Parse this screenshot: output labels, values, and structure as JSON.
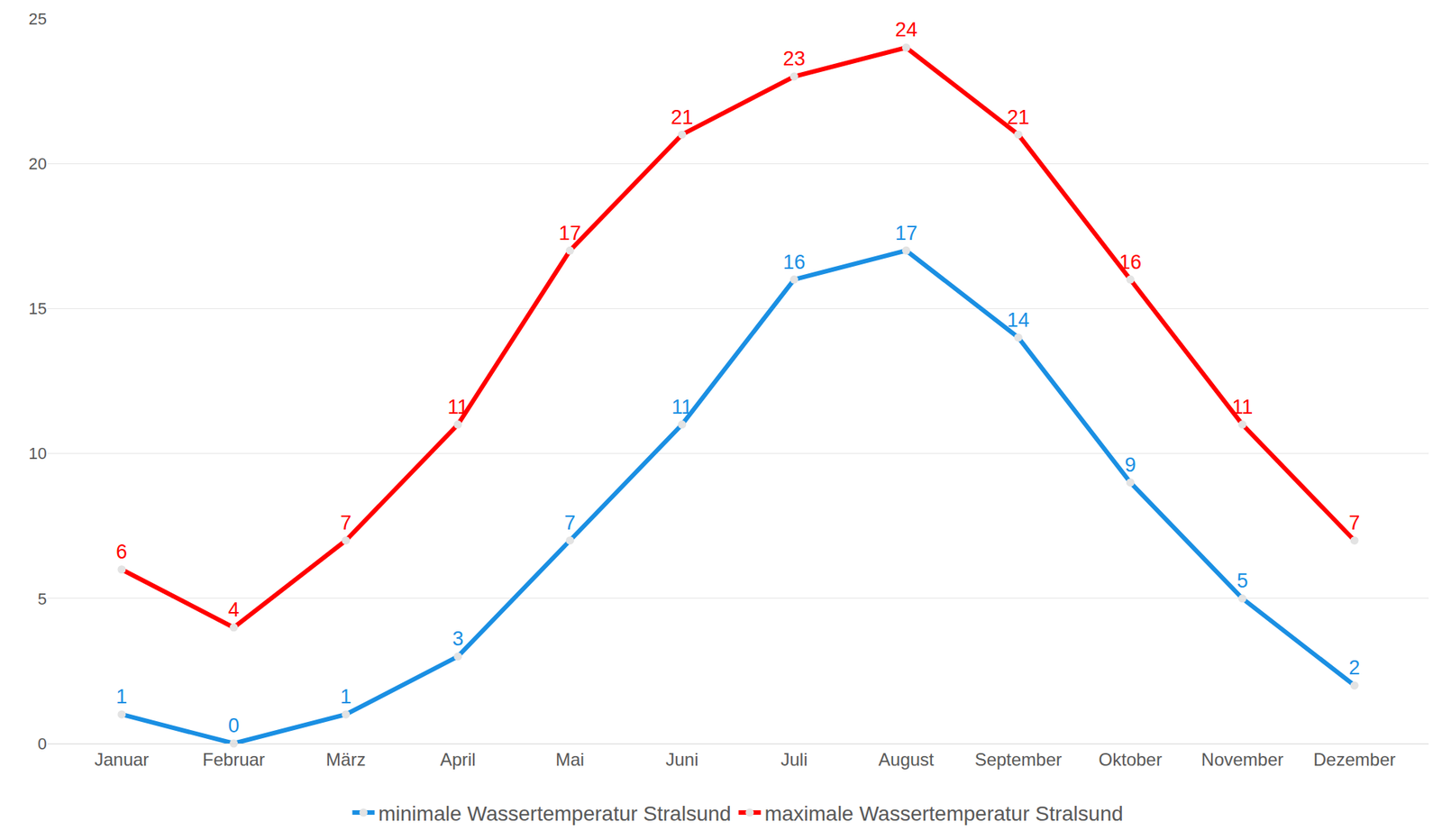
{
  "chart_data": {
    "type": "line",
    "categories": [
      "Januar",
      "Februar",
      "März",
      "April",
      "Mai",
      "Juni",
      "Juli",
      "August",
      "September",
      "Oktober",
      "November",
      "Dezember"
    ],
    "series": [
      {
        "name": "minimale Wassertemperatur Stralsund",
        "color": "#1a8fe3",
        "values": [
          1,
          0,
          1,
          3,
          7,
          11,
          16,
          17,
          14,
          9,
          5,
          2
        ]
      },
      {
        "name": "maximale Wassertemperatur Stralsund",
        "color": "#ff0000",
        "values": [
          6,
          4,
          7,
          11,
          17,
          21,
          23,
          24,
          21,
          16,
          11,
          7
        ]
      }
    ],
    "ylim": [
      0,
      25
    ],
    "yticks": [
      0,
      5,
      10,
      15,
      20,
      25
    ],
    "grid": true,
    "legend": "bottom",
    "data_labels": true,
    "marker": "circle"
  }
}
